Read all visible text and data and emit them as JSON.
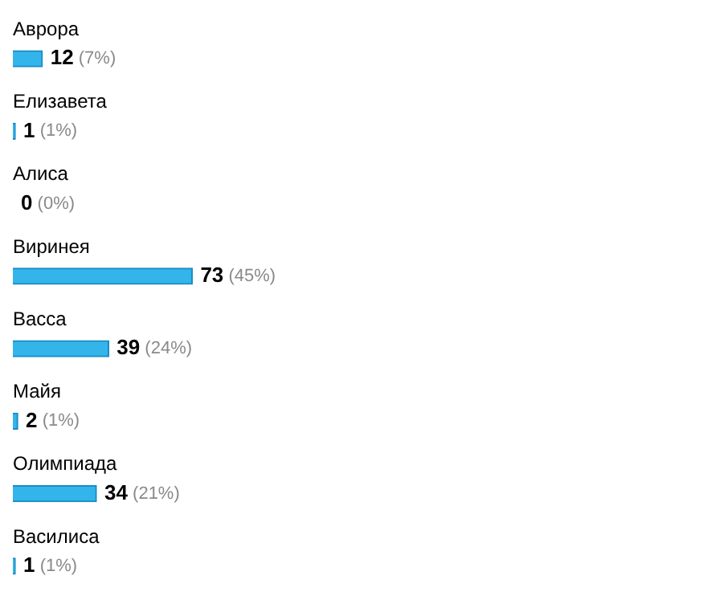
{
  "chart_data": {
    "type": "bar",
    "orientation": "horizontal",
    "categories": [
      "Аврора",
      "Елизавета",
      "Алиса",
      "Виринея",
      "Васса",
      "Майя",
      "Олимпиада",
      "Василиса"
    ],
    "values": [
      12,
      1,
      0,
      73,
      39,
      2,
      34,
      1
    ],
    "value_labels": [
      "12 (7%)",
      "1 (1%)",
      "0 (0%)",
      "73 (45%)",
      "39 (24%)",
      "2 (1%)",
      "34 (21%)",
      "1 (1%)"
    ],
    "color": "#33b5ec",
    "grid": false,
    "legend": false,
    "tick_labels": "y"
  }
}
